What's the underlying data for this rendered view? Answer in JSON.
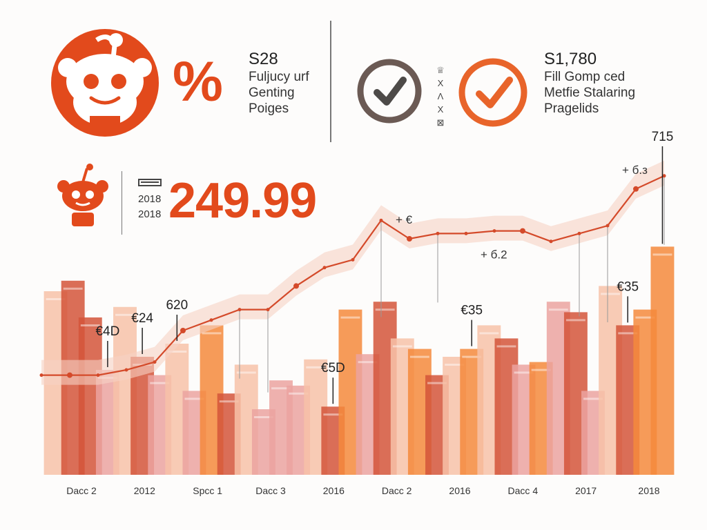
{
  "header": {
    "left_stat": {
      "value": "S28",
      "lines": [
        "Fuljucy urf",
        "Genting",
        "Poiges"
      ]
    },
    "percent_symbol": "%",
    "right_stat": {
      "value": "S1,780",
      "lines": [
        "Fill Gomp ced",
        "Metfie Stalaring",
        "Pragelids"
      ]
    },
    "mini_glyphs": [
      "♕",
      "Χ",
      "Λ",
      "Χ",
      "⊠"
    ]
  },
  "highlight": {
    "value": "249.99",
    "years": [
      "2018",
      "2018"
    ]
  },
  "colors": {
    "accent": "#e24a1c",
    "dark_bar": "#d4553a",
    "orange_bar": "#f58a3c",
    "peach_bar": "#f7c2a8",
    "pink_bar": "#eba3a0",
    "line": "#d44a2a",
    "band": "#f7d2c4"
  },
  "icons": [
    "mascot-icon",
    "small-mascot-icon",
    "checkmark-circle-dark-icon",
    "checkmark-circle-orange-icon",
    "flag-icon"
  ],
  "chart_data": {
    "type": "bar",
    "title": "",
    "xlabel": "",
    "ylabel": "",
    "ylim": [
      0,
      100
    ],
    "x_labels": [
      "Dacc 2",
      "2012",
      "Spcc 1",
      "Dacc 3",
      "2016",
      "Dacc 2",
      "2016",
      "Dacc 4",
      "2017",
      "2018"
    ],
    "bars": [
      {
        "v": 70,
        "c": "peach"
      },
      {
        "v": 74,
        "c": "dark"
      },
      {
        "v": 60,
        "c": "dark"
      },
      {
        "v": 40,
        "c": "pink"
      },
      {
        "v": 64,
        "c": "peach"
      },
      {
        "v": 45,
        "c": "dark"
      },
      {
        "v": 38,
        "c": "pink"
      },
      {
        "v": 50,
        "c": "peach"
      },
      {
        "v": 32,
        "c": "pink"
      },
      {
        "v": 57,
        "c": "orange"
      },
      {
        "v": 31,
        "c": "dark"
      },
      {
        "v": 42,
        "c": "peach"
      },
      {
        "v": 25,
        "c": "pink"
      },
      {
        "v": 36,
        "c": "pink"
      },
      {
        "v": 34,
        "c": "pink"
      },
      {
        "v": 44,
        "c": "peach"
      },
      {
        "v": 26,
        "c": "dark"
      },
      {
        "v": 63,
        "c": "orange"
      },
      {
        "v": 46,
        "c": "pink"
      },
      {
        "v": 66,
        "c": "dark"
      },
      {
        "v": 52,
        "c": "peach"
      },
      {
        "v": 48,
        "c": "orange"
      },
      {
        "v": 38,
        "c": "dark"
      },
      {
        "v": 45,
        "c": "peach"
      },
      {
        "v": 48,
        "c": "orange"
      },
      {
        "v": 57,
        "c": "peach"
      },
      {
        "v": 52,
        "c": "dark"
      },
      {
        "v": 42,
        "c": "pink"
      },
      {
        "v": 43,
        "c": "orange"
      },
      {
        "v": 66,
        "c": "pink"
      },
      {
        "v": 62,
        "c": "dark"
      },
      {
        "v": 32,
        "c": "pink"
      },
      {
        "v": 72,
        "c": "peach"
      },
      {
        "v": 57,
        "c": "dark"
      },
      {
        "v": 63,
        "c": "orange"
      },
      {
        "v": 87,
        "c": "orange"
      }
    ],
    "line": [
      38,
      38,
      38,
      40,
      43,
      55,
      59,
      63,
      63,
      72,
      79,
      82,
      97,
      90,
      92,
      92,
      93,
      93,
      89,
      92,
      95,
      109,
      114
    ],
    "annotations": [
      {
        "text": "€4D",
        "x_ref": 3
      },
      {
        "text": "€24",
        "x_ref": 5
      },
      {
        "text": "620",
        "x_ref": 7
      },
      {
        "text": "€5D",
        "x_ref": 16
      },
      {
        "text": "€35",
        "x_ref": 24
      },
      {
        "text": "€35",
        "x_ref": 33
      },
      {
        "text": "715",
        "x_ref": 35
      }
    ],
    "markers": [
      "+ €",
      "+ б.2",
      "+ б.з"
    ]
  }
}
